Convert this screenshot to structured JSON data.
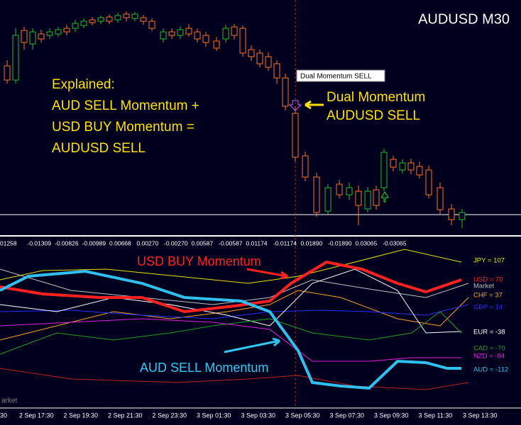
{
  "header": {
    "symbol": "AUDUSD M30"
  },
  "price_pane": {
    "explanation": [
      "Explained:",
      "AUD SELL Momentum +",
      "USD BUY Momentum =",
      "AUDUSD SELL"
    ],
    "tooltip": "Dual Momentum SELL",
    "signal_label": [
      "Dual Momentum",
      "AUDUSD SELL"
    ]
  },
  "indicator_pane": {
    "levels": [
      "01258",
      "-0.01309",
      "-0.00826",
      "-0.00989",
      "0.00668",
      "0.00270",
      "-0.00270",
      "0.00587",
      "-0.00587",
      "0.01174",
      "-0.01174",
      "0.01890",
      "-0.01890",
      "0.03065",
      "-0.03065"
    ],
    "usd_label": "USD BUY Momentum",
    "aud_label": "AUD SELL Momentum",
    "currencies": [
      {
        "text": "JPY = 107",
        "color": "#e8e000"
      },
      {
        "text": "USD = 70",
        "color": "#ff2020"
      },
      {
        "text": "Market",
        "color": "#c0c0c0"
      },
      {
        "text": "CHF = 37",
        "color": "#ffa020"
      },
      {
        "text": "GBP = 14",
        "color": "#2030ff"
      },
      {
        "text": "EUR = -38",
        "color": "#ffffff"
      },
      {
        "text": "CAD = -70",
        "color": "#20a020"
      },
      {
        "text": "NZD = -84",
        "color": "#e020e0"
      },
      {
        "text": "AUD = -112",
        "color": "#30c0f0"
      }
    ],
    "corner": "arket"
  },
  "time_axis": [
    "30",
    "2 Sep 17:30",
    "2 Sep 19:30",
    "2 Sep 21:30",
    "2 Sep 23:30",
    "3 Sep 01:30",
    "3 Sep 03:30",
    "3 Sep 05:30",
    "3 Sep 07:30",
    "3 Sep 09:30",
    "3 Sep 11:30",
    "3 Sep 13:30"
  ]
}
